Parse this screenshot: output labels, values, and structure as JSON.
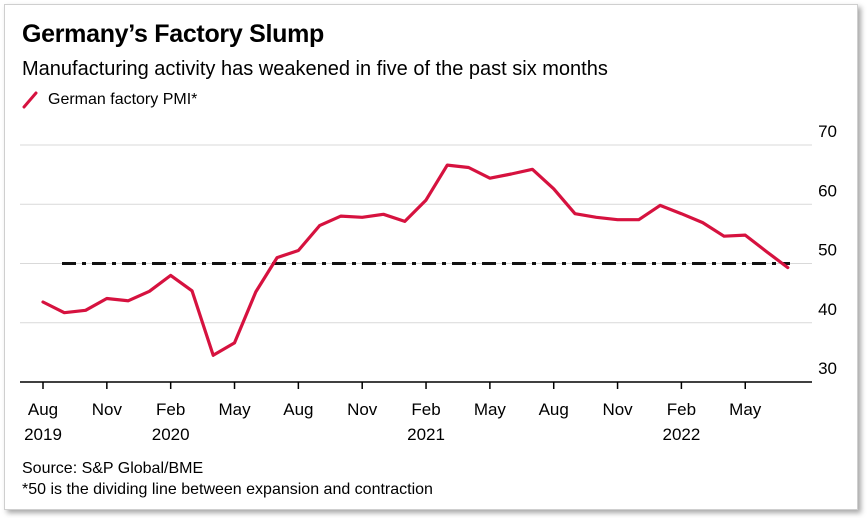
{
  "title": "Germany’s Factory Slump",
  "subtitle": "Manufacturing activity has weakened in five of the past six months",
  "source": "Source: S&P Global/BME",
  "footnote": "*50 is the dividing line between expansion and contraction",
  "colors": {
    "series": "#d6123f",
    "reference": "#111111",
    "grid": "#d9d9d9",
    "axis": "#000000"
  },
  "chart_data": {
    "type": "line",
    "title": "Germany’s Factory Slump",
    "subtitle": "Manufacturing activity has weakened in five of the past six months",
    "ylim": [
      30,
      70
    ],
    "y_ticks": [
      30,
      40,
      50,
      60,
      70
    ],
    "y_axis_side": "right",
    "grid": "horizontal",
    "legend_placement": "top-left",
    "x_tick_labels": [
      {
        "month": "2019-08",
        "label": "Aug",
        "year": "2019"
      },
      {
        "month": "2019-11",
        "label": "Nov",
        "year": ""
      },
      {
        "month": "2020-02",
        "label": "Feb",
        "year": "2020"
      },
      {
        "month": "2020-05",
        "label": "May",
        "year": ""
      },
      {
        "month": "2020-08",
        "label": "Aug",
        "year": ""
      },
      {
        "month": "2020-11",
        "label": "Nov",
        "year": ""
      },
      {
        "month": "2021-02",
        "label": "Feb",
        "year": "2021"
      },
      {
        "month": "2021-05",
        "label": "May",
        "year": ""
      },
      {
        "month": "2021-08",
        "label": "Aug",
        "year": ""
      },
      {
        "month": "2021-11",
        "label": "Nov",
        "year": ""
      },
      {
        "month": "2022-02",
        "label": "Feb",
        "year": "2022"
      },
      {
        "month": "2022-05",
        "label": "May",
        "year": ""
      }
    ],
    "reference_line": {
      "y": 50
    },
    "series": [
      {
        "name": "German factory PMI*",
        "x": [
          "2019-08",
          "2019-09",
          "2019-10",
          "2019-11",
          "2019-12",
          "2020-01",
          "2020-02",
          "2020-03",
          "2020-04",
          "2020-05",
          "2020-06",
          "2020-07",
          "2020-08",
          "2020-09",
          "2020-10",
          "2020-11",
          "2020-12",
          "2021-01",
          "2021-02",
          "2021-03",
          "2021-04",
          "2021-05",
          "2021-06",
          "2021-07",
          "2021-08",
          "2021-09",
          "2021-10",
          "2021-11",
          "2021-12",
          "2022-01",
          "2022-02",
          "2022-03",
          "2022-04",
          "2022-05",
          "2022-06",
          "2022-07"
        ],
        "values": [
          43.5,
          41.7,
          42.1,
          44.1,
          43.7,
          45.3,
          48.0,
          45.4,
          34.5,
          36.6,
          45.2,
          51.0,
          52.2,
          56.4,
          58.0,
          57.8,
          58.3,
          57.1,
          60.7,
          66.6,
          66.2,
          64.4,
          65.1,
          65.9,
          62.6,
          58.4,
          57.8,
          57.4,
          57.4,
          59.8,
          58.4,
          56.9,
          54.6,
          54.8,
          52.0,
          49.3
        ]
      }
    ]
  }
}
